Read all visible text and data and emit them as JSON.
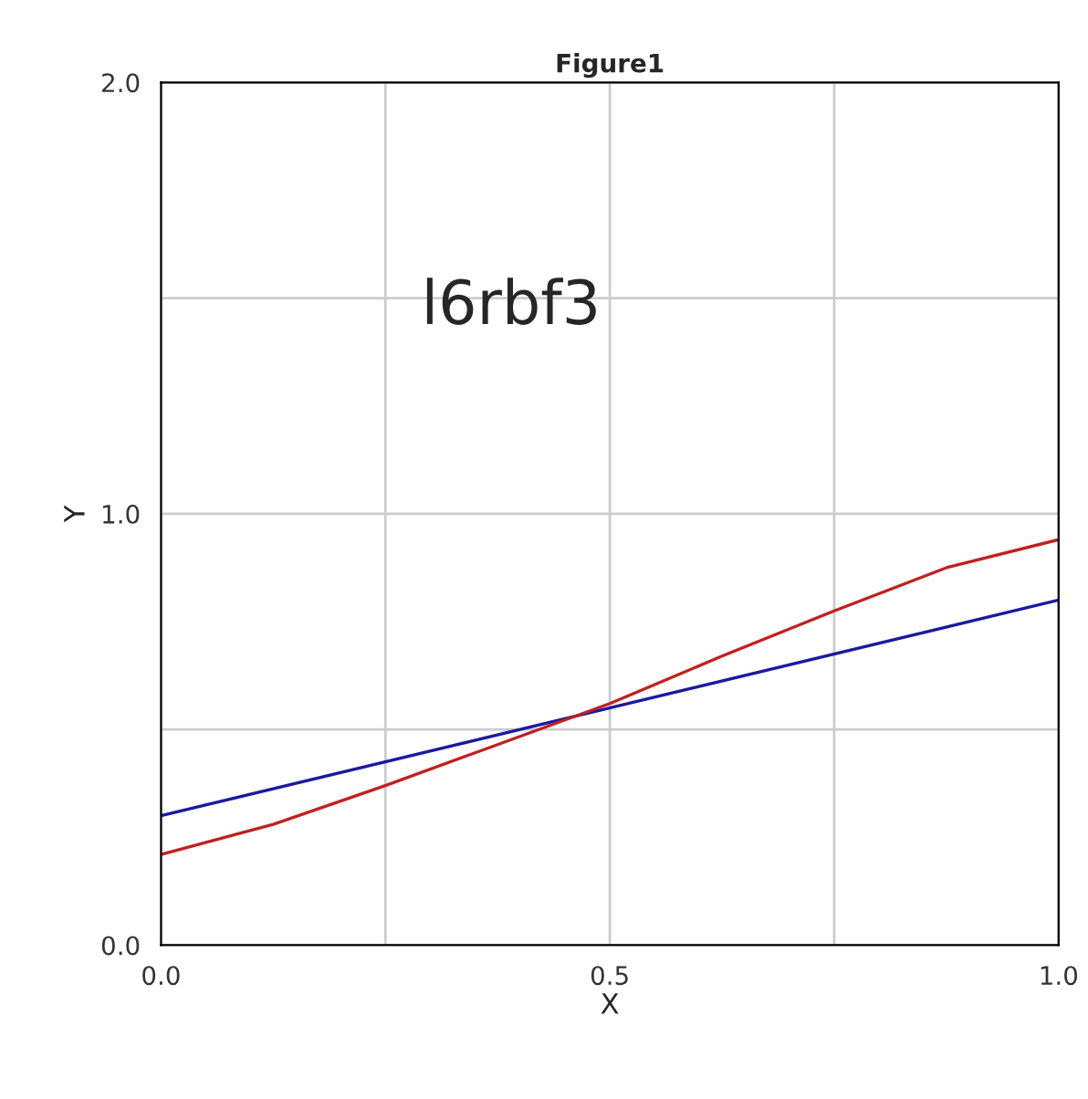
{
  "chart_data": {
    "type": "line",
    "title": "Figure1",
    "xlabel": "X",
    "ylabel": "Y",
    "annotations": [
      "l6rbf3"
    ],
    "series": [
      {
        "color": "#1a1aa0",
        "x": [
          0,
          1
        ],
        "values": [
          0.3,
          0.8
        ]
      },
      {
        "color": "#c02020",
        "x": [
          0,
          0.125,
          0.25,
          0.375,
          0.5,
          0.625,
          0.75,
          0.875,
          1
        ],
        "values": [
          0.21,
          0.28,
          0.37,
          0.465,
          0.56,
          0.67,
          0.775,
          0.875,
          0.94
        ]
      }
    ],
    "xlim": [
      0,
      1
    ],
    "ylim": [
      0,
      2
    ],
    "xticks": [
      {
        "value": 0,
        "label": "0.0"
      },
      {
        "value": 0.25,
        "label": null
      },
      {
        "value": 0.5,
        "label": "0.5"
      },
      {
        "value": 0.75,
        "label": null
      },
      {
        "value": 1,
        "label": "1.0"
      }
    ],
    "yticks": [
      {
        "value": 0,
        "label": "0.0"
      },
      {
        "value": 0.5,
        "label": null
      },
      {
        "value": 1,
        "label": "1.0"
      },
      {
        "value": 1.5,
        "label": null
      },
      {
        "value": 2,
        "label": "2.0"
      }
    ],
    "grid": true
  }
}
